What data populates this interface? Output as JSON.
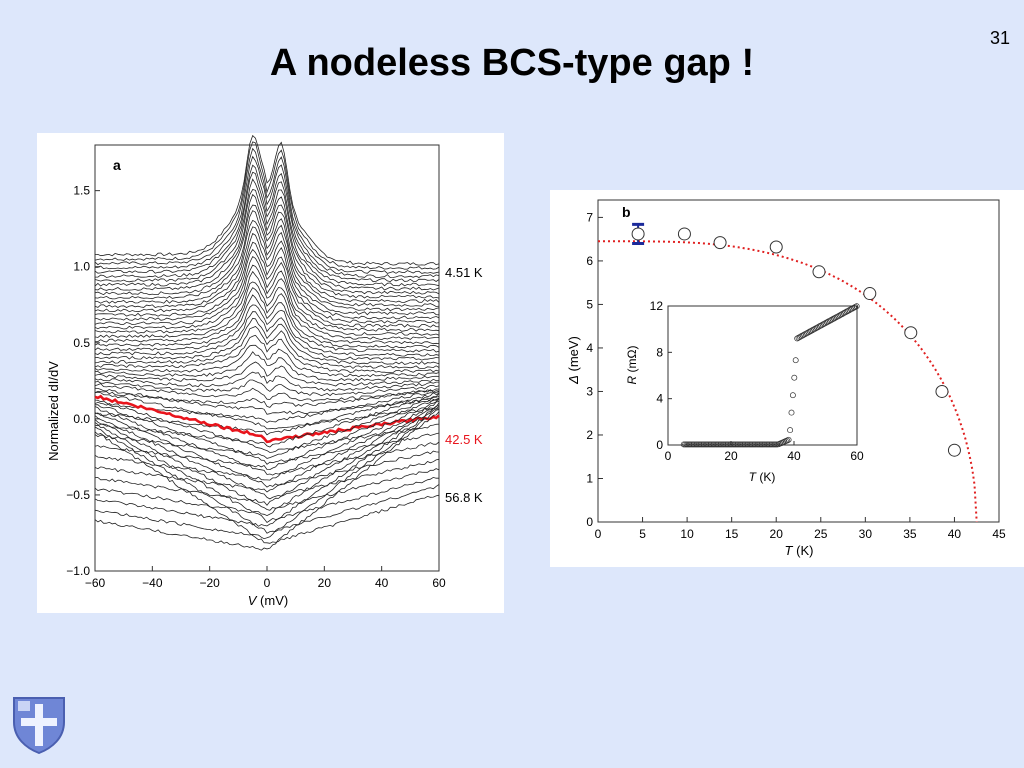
{
  "slide": {
    "number": "31",
    "title": "A nodeless BCS-type gap !"
  },
  "chart_data": [
    {
      "type": "line",
      "panel_label": "a",
      "xlabel_italic": "V",
      "xlabel_unit": " (mV)",
      "ylabel": "Normalized dI/dV",
      "xlim": [
        -60,
        60
      ],
      "ylim": [
        -1.0,
        1.8
      ],
      "x_ticks": [
        -60,
        -40,
        -20,
        0,
        20,
        40,
        60
      ],
      "x_tick_labels": [
        "−60",
        "−40",
        "−20",
        "0",
        "20",
        "40",
        "60"
      ],
      "y_ticks": [
        -1.0,
        -0.5,
        0.0,
        0.5,
        1.0,
        1.5
      ],
      "y_tick_labels": [
        "−1.0",
        "−0.5",
        "0.0",
        "0.5",
        "1.0",
        "1.5"
      ],
      "n_curves": 58,
      "highlight_color": "#e8141c",
      "curve_color": "#222222",
      "annotations": [
        {
          "text": "4.51 K",
          "y": 0.96,
          "color": "#000000"
        },
        {
          "text": "42.5 K",
          "y": -0.14,
          "color": "#e8141c"
        },
        {
          "text": "56.8 K",
          "y": -0.52,
          "color": "#000000"
        }
      ],
      "series": [
        {
          "name": "4.51 K",
          "x": [
            -60,
            -40,
            -20,
            -10,
            -7,
            -5,
            -3,
            0,
            3,
            5,
            7,
            10,
            20,
            40,
            60
          ],
          "y": [
            1.15,
            1.12,
            1.2,
            1.35,
            1.55,
            1.73,
            1.6,
            1.5,
            1.6,
            1.72,
            1.55,
            1.35,
            1.1,
            0.98,
            0.97
          ]
        },
        {
          "name": "42.5 K",
          "x": [
            -60,
            -40,
            -20,
            0,
            20,
            40,
            60
          ],
          "y": [
            0.18,
            0.1,
            0.0,
            -0.1,
            -0.2,
            -0.15,
            -0.12
          ]
        },
        {
          "name": "56.8 K",
          "x": [
            -60,
            -40,
            -20,
            0,
            20,
            40,
            60
          ],
          "y": [
            0.0,
            -0.4,
            -0.72,
            -0.95,
            -0.75,
            -0.55,
            -0.28
          ]
        }
      ]
    },
    {
      "type": "scatter",
      "panel_label": "b",
      "xlabel_italic": "T",
      "xlabel_unit": " (K)",
      "ylabel_italic": "Δ",
      "ylabel_unit": " (meV)",
      "xlim": [
        0,
        45
      ],
      "ylim": [
        0,
        7.4
      ],
      "x_ticks": [
        0,
        5,
        10,
        15,
        20,
        25,
        30,
        35,
        40,
        45
      ],
      "x_tick_labels": [
        "0",
        "5",
        "10",
        "15",
        "20",
        "25",
        "30",
        "35",
        "40",
        "45"
      ],
      "y_ticks": [
        0,
        1,
        2,
        3,
        4,
        5,
        6,
        7
      ],
      "y_tick_labels": [
        "0",
        "1",
        "2",
        "3",
        "4",
        "5",
        "6",
        "7"
      ],
      "points": [
        {
          "x": 4.5,
          "y": 6.62,
          "err": 0.22
        },
        {
          "x": 9.7,
          "y": 6.62
        },
        {
          "x": 13.7,
          "y": 6.42
        },
        {
          "x": 20.0,
          "y": 6.32
        },
        {
          "x": 24.8,
          "y": 5.75
        },
        {
          "x": 30.5,
          "y": 5.25
        },
        {
          "x": 35.1,
          "y": 4.35
        },
        {
          "x": 38.6,
          "y": 3.0
        },
        {
          "x": 40.0,
          "y": 1.65
        }
      ],
      "bcs_fit": {
        "delta0": 6.45,
        "tc": 42.5,
        "color": "#e02020"
      },
      "error_bar_color": "#1b2a9a",
      "inset": {
        "type": "scatter",
        "xlabel_italic": "T",
        "xlabel_unit": " (K)",
        "ylabel_italic": "R",
        "ylabel_unit": " (mΩ)",
        "xlim": [
          0,
          60
        ],
        "ylim": [
          0,
          12
        ],
        "x_ticks": [
          0,
          20,
          40,
          60
        ],
        "x_tick_labels": [
          "0",
          "20",
          "40",
          "60"
        ],
        "y_ticks": [
          0,
          4,
          8,
          12
        ],
        "y_tick_labels": [
          "0",
          "4",
          "8",
          "12"
        ],
        "transition_T": 40,
        "r_normal_start": 9.2,
        "r_normal_end": 12
      }
    }
  ],
  "logo": {
    "name": "college-shield"
  }
}
